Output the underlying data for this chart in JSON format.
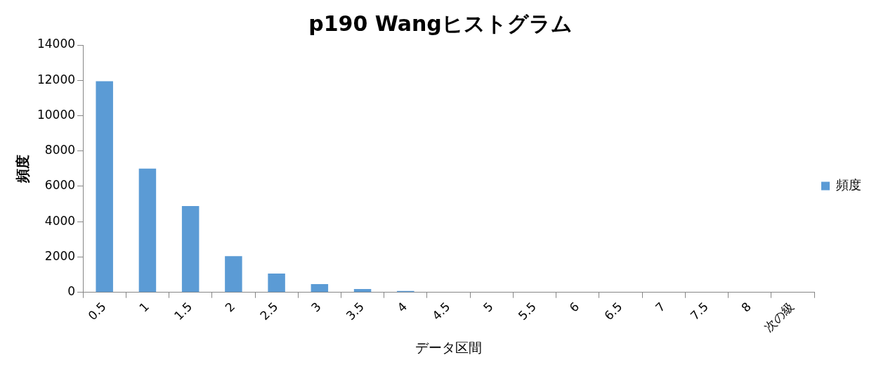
{
  "chart_data": {
    "type": "bar",
    "title": "p190 Wangヒストグラム",
    "xlabel": "データ区間",
    "ylabel": "頻度",
    "categories": [
      "0.5",
      "1",
      "1.5",
      "2",
      "2.5",
      "3",
      "3.5",
      "4",
      "4.5",
      "5",
      "5.5",
      "6",
      "6.5",
      "7",
      "7.5",
      "8",
      "次の級"
    ],
    "series": [
      {
        "name": "頻度",
        "color": "#5b9bd5",
        "values": [
          11950,
          7000,
          4880,
          2050,
          1060,
          470,
          190,
          80,
          0,
          0,
          0,
          0,
          0,
          0,
          0,
          0,
          0
        ]
      }
    ],
    "ylim": [
      0,
      14000
    ],
    "yticks": [
      0,
      2000,
      4000,
      6000,
      8000,
      10000,
      12000,
      14000
    ],
    "grid": false,
    "legend": "right"
  }
}
